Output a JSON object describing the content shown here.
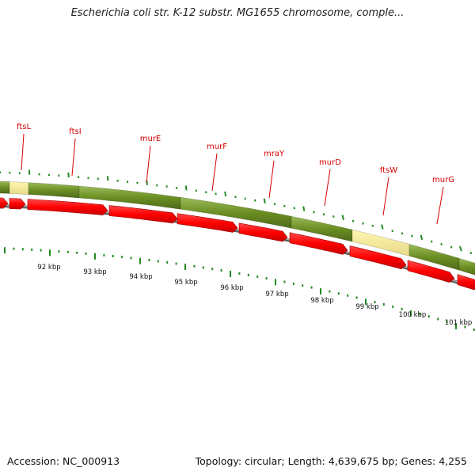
{
  "title": "Escherichia coli str. K-12 substr. MG1655 chromosome, comple...",
  "footer": {
    "accession": "Accession: NC_000913",
    "topology": "Topology: circular; Length: 4,639,675 bp; Genes: 4,255"
  },
  "colors": {
    "gene_bar": "#6b8e23",
    "gene_highlight": "#f0e68c",
    "cds_arrow": "#ff0000",
    "tick": "#228b22",
    "gene_label": "#d40000",
    "backbone": "#808080"
  },
  "genes": [
    "ftsL",
    "ftsI",
    "murE",
    "murF",
    "mraY",
    "murD",
    "ftsW",
    "murG"
  ],
  "kbp_ticks": [
    "92 kbp",
    "93 kbp",
    "94 kbp",
    "95 kbp",
    "96 kbp",
    "97 kbp",
    "98 kbp",
    "99 kbp",
    "100 kbp",
    "101 kbp"
  ]
}
